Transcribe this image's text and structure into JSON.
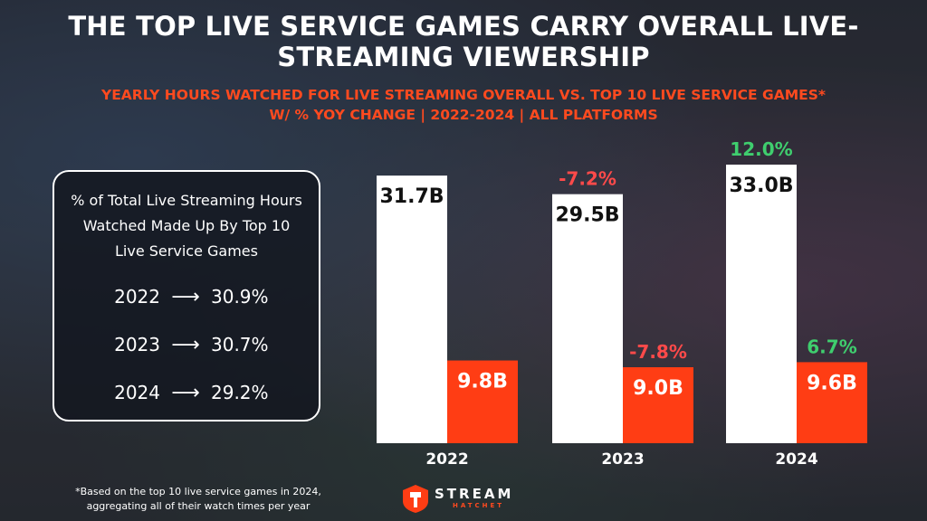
{
  "title": "THE TOP LIVE SERVICE GAMES CARRY OVERALL LIVE-STREAMING VIEWERSHIP",
  "subtitle_line1": "YEARLY HOURS WATCHED FOR LIVE STREAMING OVERALL VS. TOP 10 LIVE SERVICE GAMES*",
  "subtitle_line2": "W/ % YOY CHANGE | 2022-2024 | ALL PLATFORMS",
  "panel": {
    "title": "% of Total Live Streaming Hours Watched Made Up By Top 10 Live Service Games",
    "arrow": "⟶",
    "rows": [
      {
        "year": "2022",
        "value": "30.9%"
      },
      {
        "year": "2023",
        "value": "30.7%"
      },
      {
        "year": "2024",
        "value": "29.2%"
      }
    ]
  },
  "chart_data": {
    "type": "bar",
    "categories": [
      "2022",
      "2023",
      "2024"
    ],
    "series": [
      {
        "values": [
          31.7,
          29.5,
          33.0
        ],
        "labels": [
          "31.7B",
          "29.5B",
          "33.0B"
        ],
        "yoy": [
          null,
          "-7.2%",
          "12.0%"
        ],
        "color": "#ffffff"
      },
      {
        "values": [
          9.8,
          9.0,
          9.6
        ],
        "labels": [
          "9.8B",
          "9.0B",
          "9.6B"
        ],
        "yoy": [
          null,
          "-7.8%",
          "6.7%"
        ],
        "color": "#ff3d14"
      }
    ],
    "ylim": [
      0,
      33.0
    ],
    "colors": {
      "negative": "#ff4a4a",
      "positive": "#3fce6e"
    }
  },
  "footnote": "*Based on the top 10 live service games in 2024, aggregating all of their watch times per year",
  "logo": {
    "name": "STREAM",
    "sub": "HATCHET",
    "icon": "hatchet-logo-icon"
  }
}
